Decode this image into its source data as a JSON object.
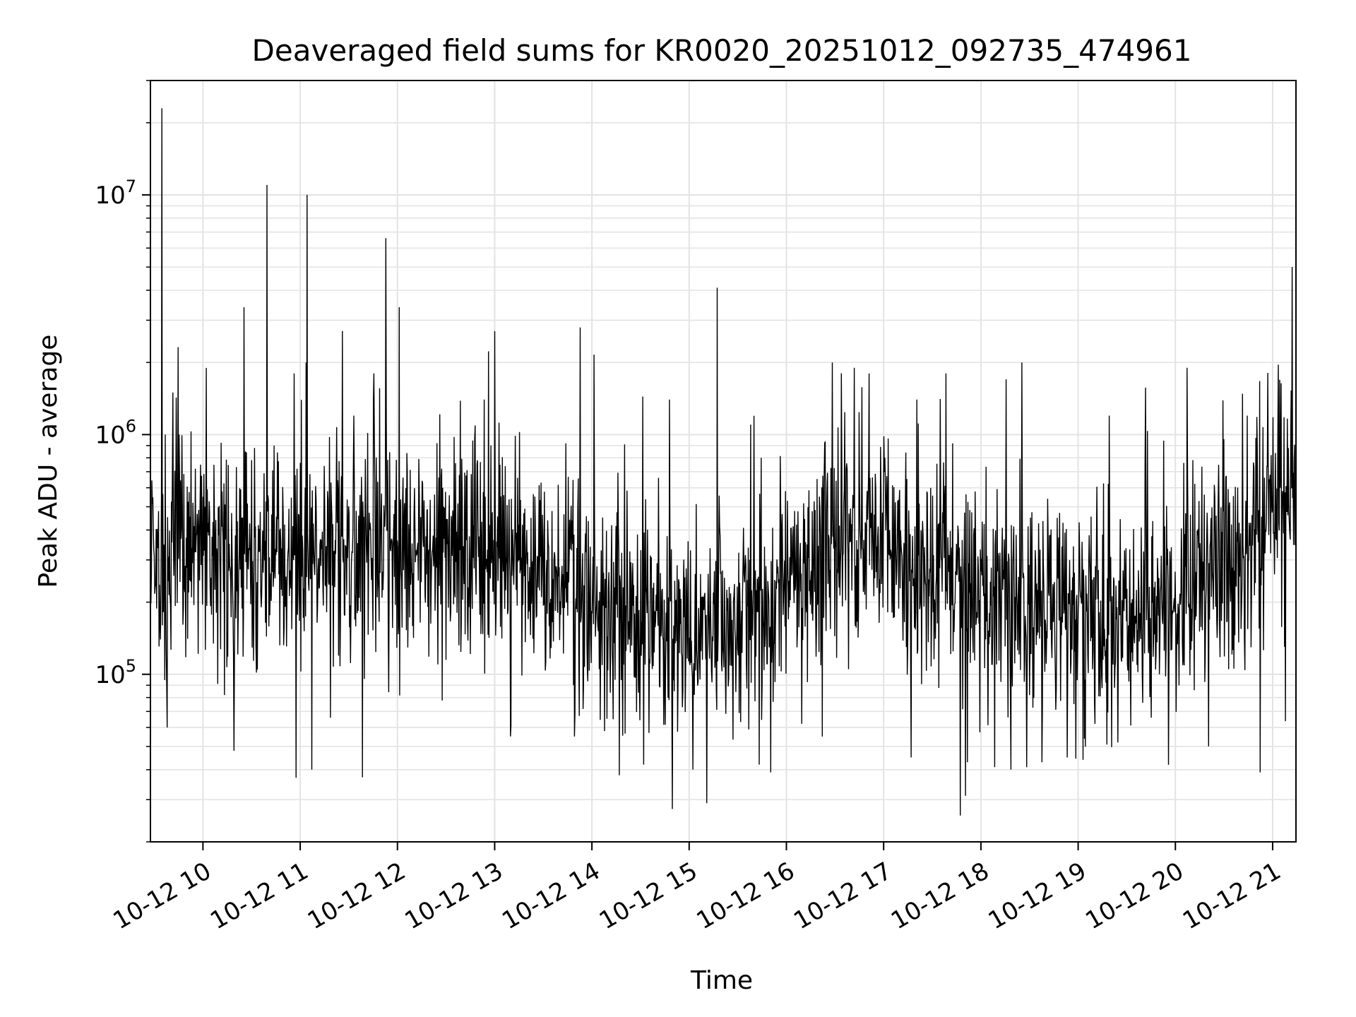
{
  "chart_data": {
    "type": "line",
    "title": "Deaveraged field sums for KR0020_20251012_092735_474961",
    "xlabel": "Time",
    "ylabel": "Peak ADU - average",
    "yscale": "log",
    "ylim": [
      20000,
      30000000
    ],
    "xlim_hours": [
      9.46,
      21.24
    ],
    "grid": true,
    "line_color": "#000000",
    "x_ticks": [
      {
        "hour": 10,
        "label": "10-12 10"
      },
      {
        "hour": 11,
        "label": "10-12 11"
      },
      {
        "hour": 12,
        "label": "10-12 12"
      },
      {
        "hour": 13,
        "label": "10-12 13"
      },
      {
        "hour": 14,
        "label": "10-12 14"
      },
      {
        "hour": 15,
        "label": "10-12 15"
      },
      {
        "hour": 16,
        "label": "10-12 16"
      },
      {
        "hour": 17,
        "label": "10-12 17"
      },
      {
        "hour": 18,
        "label": "10-12 18"
      },
      {
        "hour": 19,
        "label": "10-12 19"
      },
      {
        "hour": 20,
        "label": "10-12 20"
      },
      {
        "hour": 21,
        "label": "10-12 21"
      }
    ],
    "y_ticks": [
      {
        "value": 100000,
        "base": "10",
        "exp": "5"
      },
      {
        "value": 1000000,
        "base": "10",
        "exp": "6"
      },
      {
        "value": 10000000,
        "base": "10",
        "exp": "7"
      }
    ],
    "baseline_profile": [
      {
        "hour": 9.46,
        "median": 280000
      },
      {
        "hour": 9.7,
        "median": 320000
      },
      {
        "hour": 10.0,
        "median": 340000
      },
      {
        "hour": 11.0,
        "median": 310000
      },
      {
        "hour": 12.0,
        "median": 360000
      },
      {
        "hour": 12.5,
        "median": 330000
      },
      {
        "hour": 13.0,
        "median": 300000
      },
      {
        "hour": 13.5,
        "median": 260000
      },
      {
        "hour": 14.0,
        "median": 210000
      },
      {
        "hour": 14.5,
        "median": 170000
      },
      {
        "hour": 15.0,
        "median": 150000
      },
      {
        "hour": 15.5,
        "median": 190000
      },
      {
        "hour": 16.0,
        "median": 230000
      },
      {
        "hour": 16.5,
        "median": 420000
      },
      {
        "hour": 17.0,
        "median": 330000
      },
      {
        "hour": 17.5,
        "median": 270000
      },
      {
        "hour": 18.0,
        "median": 230000
      },
      {
        "hour": 18.5,
        "median": 200000
      },
      {
        "hour": 19.0,
        "median": 180000
      },
      {
        "hour": 19.5,
        "median": 170000
      },
      {
        "hour": 20.0,
        "median": 190000
      },
      {
        "hour": 20.5,
        "median": 320000
      },
      {
        "hour": 21.0,
        "median": 460000
      },
      {
        "hour": 21.24,
        "median": 500000
      }
    ],
    "spikes": [
      {
        "hour": 9.58,
        "value": 23000000
      },
      {
        "hour": 9.61,
        "value": 1000000
      },
      {
        "hour": 10.42,
        "value": 3400000
      },
      {
        "hour": 10.66,
        "value": 11000000
      },
      {
        "hour": 10.73,
        "value": 900000
      },
      {
        "hour": 10.94,
        "value": 1800000
      },
      {
        "hour": 11.06,
        "value": 2000000
      },
      {
        "hour": 11.07,
        "value": 10000000
      },
      {
        "hour": 11.55,
        "value": 1200000
      },
      {
        "hour": 11.76,
        "value": 1800000
      },
      {
        "hour": 11.88,
        "value": 6600000
      },
      {
        "hour": 12.02,
        "value": 3400000
      },
      {
        "hour": 12.89,
        "value": 1400000
      },
      {
        "hour": 13.0,
        "value": 2700000
      },
      {
        "hour": 13.88,
        "value": 2800000
      },
      {
        "hour": 14.8,
        "value": 1400000
      },
      {
        "hour": 15.29,
        "value": 4100000
      },
      {
        "hour": 15.63,
        "value": 1100000
      },
      {
        "hour": 16.47,
        "value": 2000000
      },
      {
        "hour": 16.7,
        "value": 1900000
      },
      {
        "hour": 16.85,
        "value": 1800000
      },
      {
        "hour": 17.34,
        "value": 1400000
      },
      {
        "hour": 17.64,
        "value": 1800000
      },
      {
        "hour": 18.26,
        "value": 1700000
      },
      {
        "hour": 18.42,
        "value": 2000000
      },
      {
        "hour": 19.32,
        "value": 1200000
      },
      {
        "hour": 20.12,
        "value": 1900000
      },
      {
        "hour": 20.74,
        "value": 1200000
      },
      {
        "hour": 21.2,
        "value": 5000000
      }
    ],
    "dips": [
      {
        "hour": 9.63,
        "value": 60000
      },
      {
        "hour": 10.32,
        "value": 48000
      },
      {
        "hour": 10.96,
        "value": 37000
      },
      {
        "hour": 11.12,
        "value": 40000
      },
      {
        "hour": 13.82,
        "value": 55000
      },
      {
        "hour": 14.53,
        "value": 42000
      },
      {
        "hour": 15.04,
        "value": 40000
      },
      {
        "hour": 15.18,
        "value": 29000
      },
      {
        "hour": 15.72,
        "value": 42000
      },
      {
        "hour": 15.84,
        "value": 39000
      },
      {
        "hour": 16.37,
        "value": 55000
      },
      {
        "hour": 17.28,
        "value": 45000
      },
      {
        "hour": 17.86,
        "value": 43000
      },
      {
        "hour": 18.14,
        "value": 41000
      },
      {
        "hour": 18.31,
        "value": 40000
      },
      {
        "hour": 18.47,
        "value": 41000
      },
      {
        "hour": 18.63,
        "value": 43000
      },
      {
        "hour": 18.89,
        "value": 45000
      },
      {
        "hour": 19.05,
        "value": 44000
      },
      {
        "hour": 19.41,
        "value": 52000
      },
      {
        "hour": 20.34,
        "value": 50000
      },
      {
        "hour": 20.87,
        "value": 39000
      }
    ],
    "noise_spread_decades": 0.22,
    "sample_count": 2400
  }
}
